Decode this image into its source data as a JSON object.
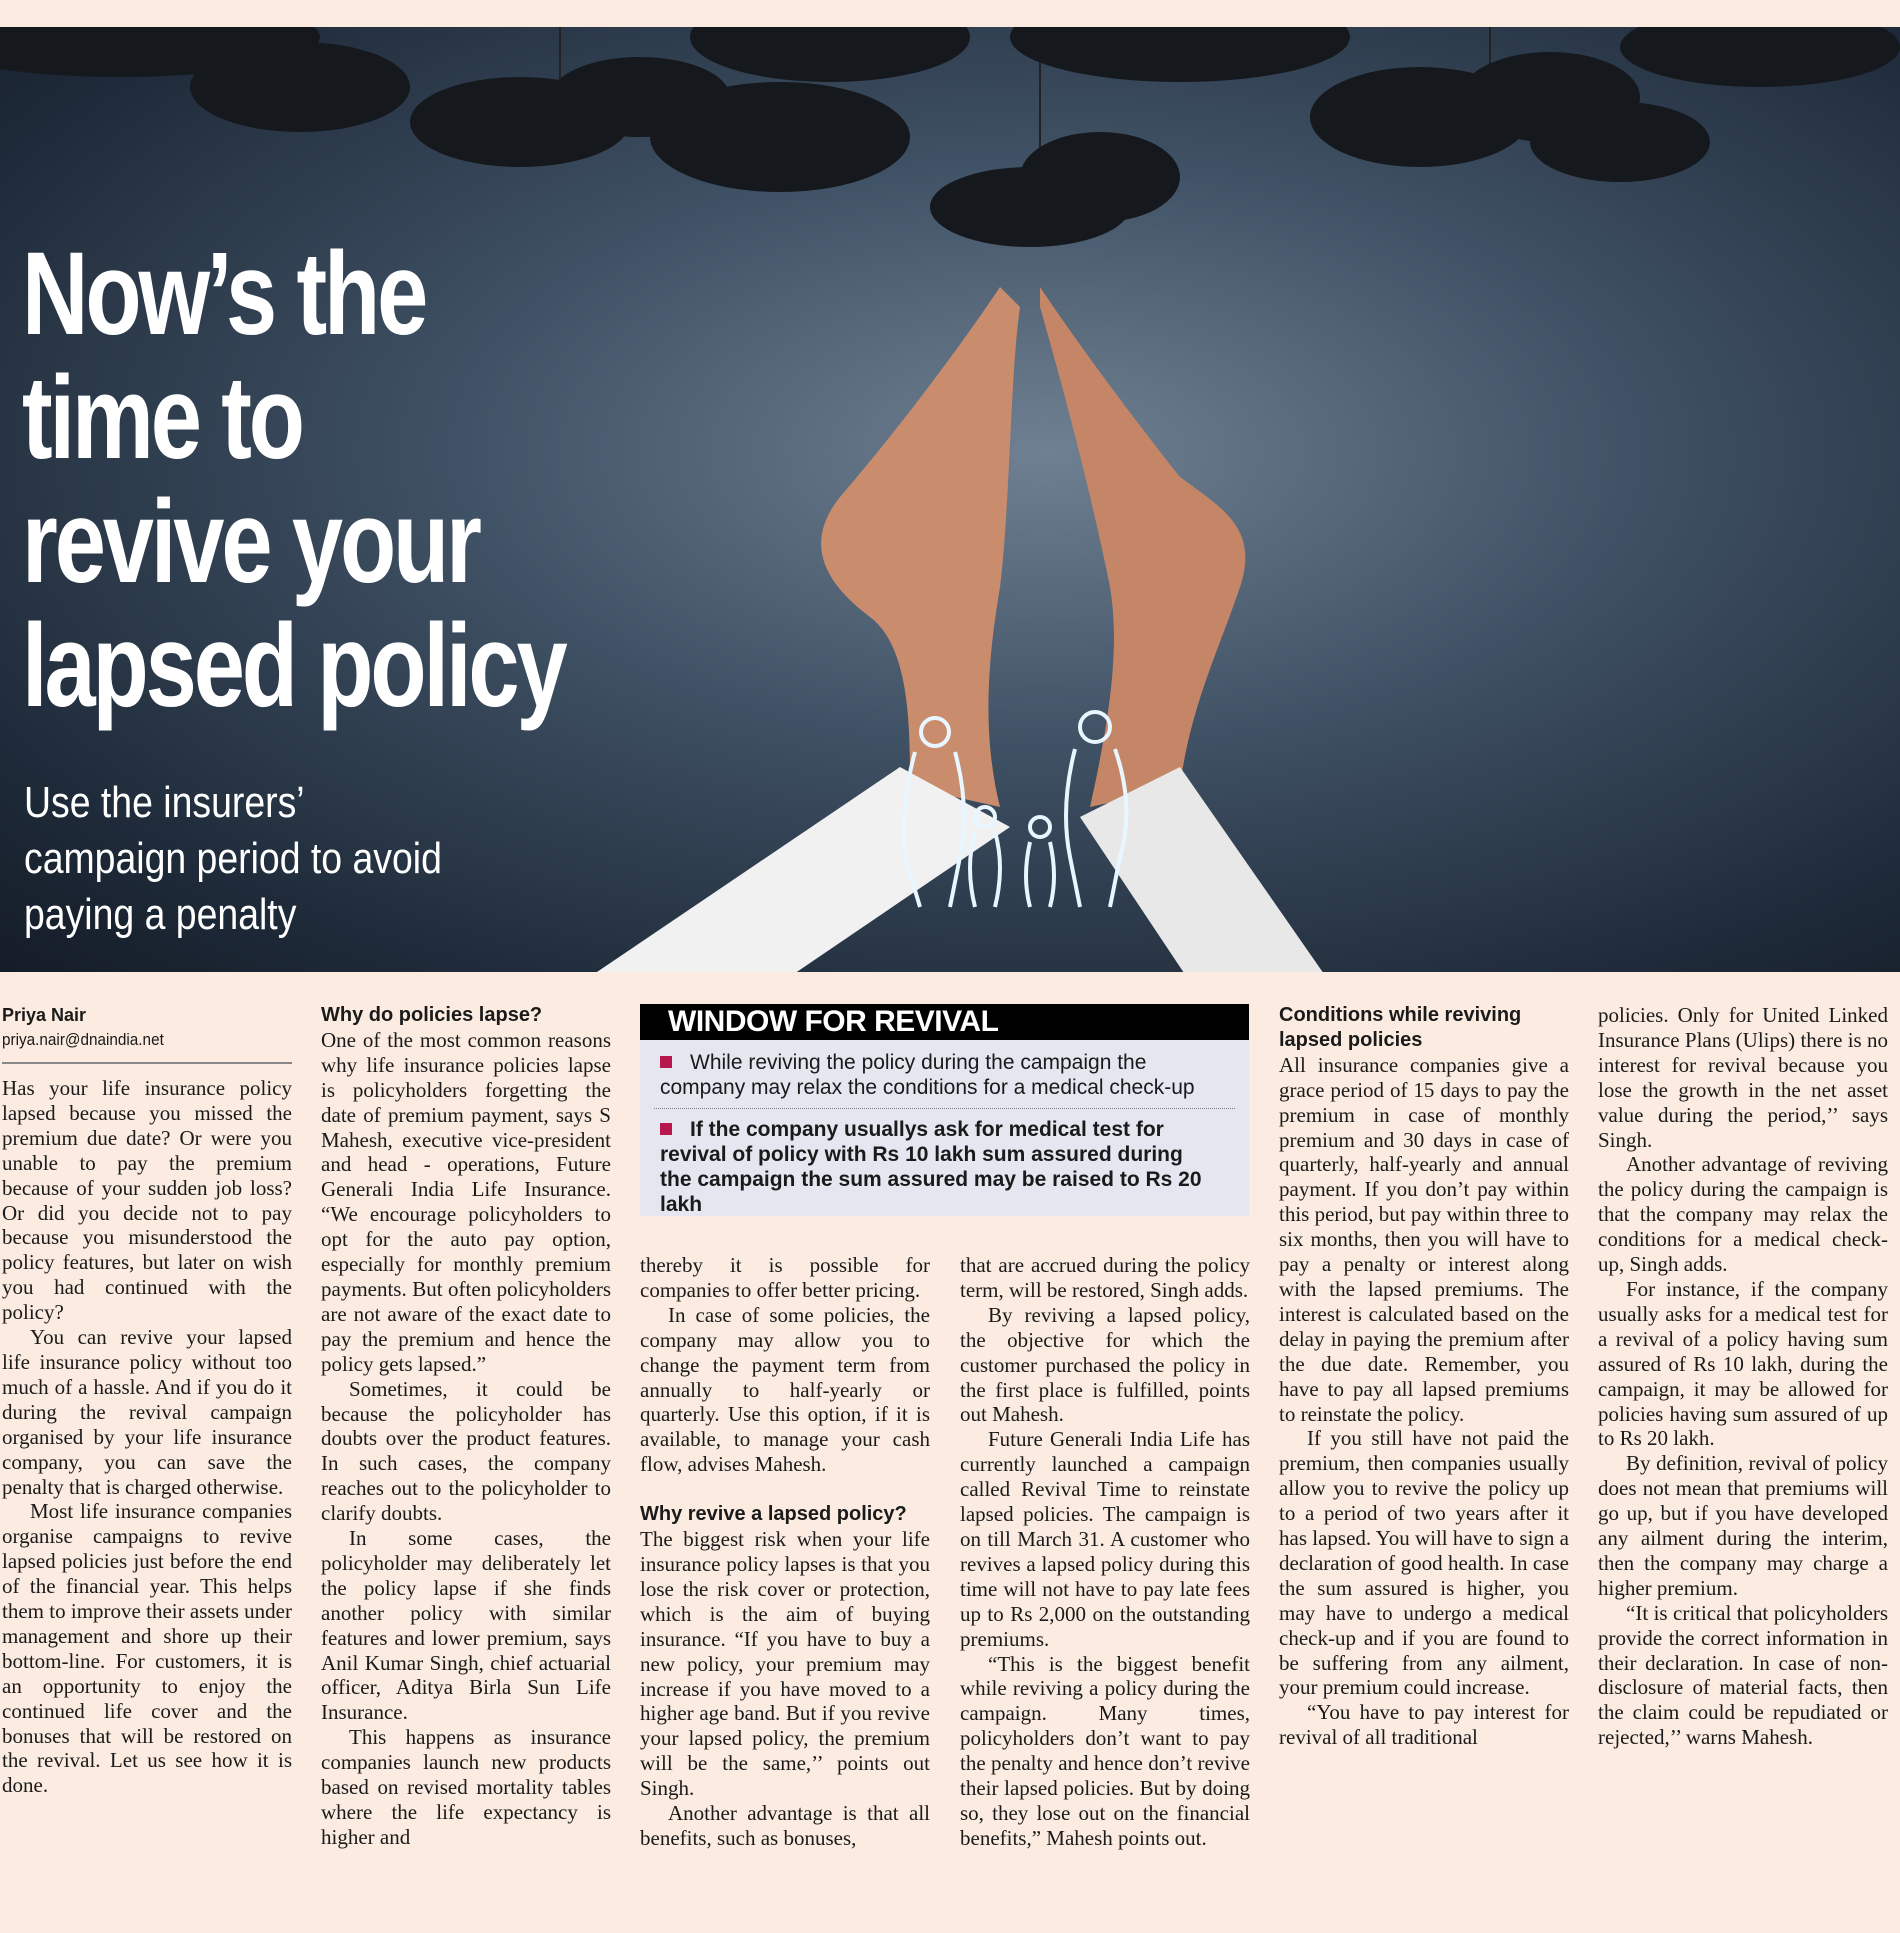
{
  "article": {
    "headline": [
      "Now’s the",
      "time to",
      "revive your",
      "lapsed policy"
    ],
    "subhead": [
      "Use the insurers’",
      "campaign period to avoid",
      "paying a penalty"
    ],
    "byline": {
      "name": "Priya Nair",
      "email": "priya.nair@dnaindia.net"
    },
    "columns": [
      {
        "paras": [
          "Has your life insurance policy lapsed because you missed the premium due date? Or were you unable to pay the premium because of your sudden job loss? Or did you decide not to pay because you misunderstood the policy features, but later on wish you had continued with the policy?",
          "You can revive your lapsed life insurance policy without too much of a hassle. And if you do it during the revival campaign organised by your life insurance company, you can save the penalty that is charged otherwise.",
          "Most life insurance companies organise campaigns to revive lapsed policies just before the end of the financial year. This helps them to improve their assets under management and shore up their bottom-line. For customers, it is an opportunity to enjoy the continued life cover and the bonuses that will be restored on the revival. Let us see how it is done."
        ]
      },
      {
        "heading": "Why do policies lapse?",
        "paras": [
          "One of the most common reasons why life insurance policies lapse is policyholders forgetting the date of premium payment, says S Mahesh, executive vice-president and head - operations, Future Generali India Life Insurance. “We encourage policyholders to opt for the auto pay option, especially for monthly premium payments. But often policyholders are not aware of the exact date to pay the premium and hence the policy gets lapsed.”",
          "Sometimes, it could be because the policyholder has doubts over the product features. In such cases, the company reaches out to the policyholder to clarify doubts.",
          "In some cases, the policyholder may deliberately let the policy lapse if she finds another policy with similar features and lower premium, says Anil Kumar Singh, chief actuarial officer, Aditya Birla Sun Life Insurance.",
          "This happens as insurance companies launch new products based on revised mortality tables where the life expectancy is higher and"
        ]
      },
      {
        "paras": [
          "thereby it is possible for companies to offer better pricing.",
          "In case of some policies, the company may allow you to change the payment term from annually to half-yearly or quarterly. Use this option, if it is available, to manage your cash flow, advises Mahesh."
        ],
        "heading": "Why revive a lapsed policy?",
        "paras2": [
          "The biggest risk when your life insurance policy lapses is that you lose the risk cover or protection, which is the aim of buying insurance. “If you have to buy a new policy, your premium may increase if you have moved to a higher age band. But if you revive your lapsed policy, the premium will be the same,’’ points out Singh.",
          "Another advantage is that all benefits, such as bonuses,"
        ]
      },
      {
        "paras": [
          "that are accrued during the policy term, will be restored, Singh adds.",
          "By reviving a lapsed policy, the objective for which the customer purchased the policy in the first place is fulfilled, points out Mahesh.",
          "Future Generali India Life has currently launched a campaign called Revival Time to reinstate lapsed policies. The campaign is on till March 31. A customer who revives a lapsed policy during this time will not have to pay late fees up to Rs 2,000 on the outstanding premiums.",
          "“This is the biggest benefit while reviving a policy during the campaign. Many times, policyholders don’t want to pay the penalty and hence don’t revive their lapsed policies. But by doing so, they lose out on the financial benefits,” Mahesh points out."
        ]
      },
      {
        "heading": "Conditions while reviving lapsed policies",
        "paras": [
          "All insurance companies give a grace period of 15 days to pay the premium in case of monthly premium and 30 days in case of quarterly, half-yearly and annual payment. If you don’t pay within this period, but pay within three to six months, then you will have to pay a penalty or interest along with the lapsed premiums. The interest is calculated based on the delay in paying the premium after the due date. Remember, you have to pay all lapsed premiums to reinstate the policy.",
          "If you still have not paid the premium, then companies usually allow you to revive the policy up to a period of two years after it has lapsed. You will have to sign a declaration of good health. In case the sum assured is higher, you may have to undergo a medical check-up and if you are found to be suffering from any ailment, your premium could increase.",
          "“You have to pay interest for revival of all traditional"
        ]
      },
      {
        "paras": [
          "policies. Only for United Linked Insurance Plans (Ulips) there is no interest for revival because you lose the growth in the net asset value during the period,’’ says Singh.",
          "Another advantage of reviving the policy during the campaign is that the company may relax the conditions for a medical check-up, Singh adds.",
          "For instance, if the company usually asks for a medical test for a revival of a policy having sum assured of Rs 10 lakh, during the campaign, it may be allowed for policies having sum assured of up to Rs 20 lakh.",
          "By definition, revival of policy does not mean that premiums will go up, but if you have developed any ailment during the interim, then the company may charge a higher premium.",
          "“It is critical that policyholders provide the correct information in their declaration. In case of non-disclosure of material facts, then the claim could be repudiated or rejected,’’ warns Mahesh."
        ]
      }
    ]
  },
  "sidebar_box": {
    "title": "WINDOW FOR REVIVAL",
    "items": [
      "While reviving the policy during the campaign the company may relax the conditions for a medical check-up",
      "If the company usuallys ask for medical test for revival of policy with Rs 10 lakh sum assured during the campaign the sum assured may be raised to Rs 20 lakh"
    ],
    "bullet_color": "#b8174d"
  }
}
